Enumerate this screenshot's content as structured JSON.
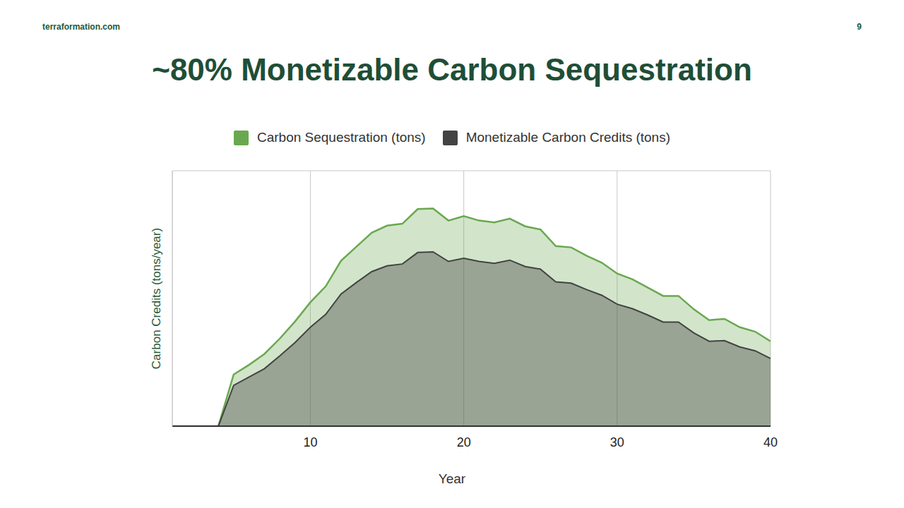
{
  "page": {
    "site": "terraformation.com",
    "number": 9
  },
  "chart_data": {
    "type": "area",
    "title": "~80% Monetizable Carbon Sequestration",
    "x_label": "Year",
    "y_label": "Carbon Credits (tons/year)",
    "x": [
      1,
      2,
      3,
      4,
      5,
      6,
      7,
      8,
      9,
      10,
      11,
      12,
      13,
      14,
      15,
      16,
      17,
      18,
      19,
      20,
      21,
      22,
      23,
      24,
      25,
      26,
      27,
      28,
      29,
      30,
      31,
      32,
      33,
      34,
      35,
      36,
      37,
      38,
      39,
      40
    ],
    "series": [
      {
        "name": "Carbon Sequestration (tons)",
        "color": "#6aa84f",
        "values": [
          0,
          0,
          0,
          0,
          0.81,
          0.96,
          1.13,
          1.37,
          1.64,
          1.94,
          2.19,
          2.59,
          2.81,
          3.03,
          3.14,
          3.17,
          3.4,
          3.41,
          3.22,
          3.29,
          3.22,
          3.19,
          3.25,
          3.13,
          3.08,
          2.82,
          2.8,
          2.67,
          2.56,
          2.39,
          2.3,
          2.17,
          2.04,
          2.04,
          1.83,
          1.66,
          1.68,
          1.55,
          1.48,
          1.33
        ]
      },
      {
        "name": "Monetizable Carbon Credits (tons)",
        "color": "#434343",
        "values": [
          0,
          0,
          0,
          0,
          0.64,
          0.77,
          0.9,
          1.1,
          1.31,
          1.55,
          1.75,
          2.07,
          2.25,
          2.42,
          2.51,
          2.54,
          2.72,
          2.73,
          2.58,
          2.63,
          2.58,
          2.55,
          2.6,
          2.5,
          2.46,
          2.26,
          2.24,
          2.14,
          2.05,
          1.91,
          1.84,
          1.74,
          1.63,
          1.63,
          1.46,
          1.33,
          1.34,
          1.24,
          1.18,
          1.06
        ]
      }
    ],
    "xlim": [
      1,
      40
    ],
    "xticks": [
      10,
      20,
      30,
      40
    ],
    "ylim": [
      0,
      4
    ],
    "yticks": [
      0,
      1,
      2,
      3,
      4
    ],
    "grid": true,
    "legend": "top",
    "tick_labels": "x"
  }
}
